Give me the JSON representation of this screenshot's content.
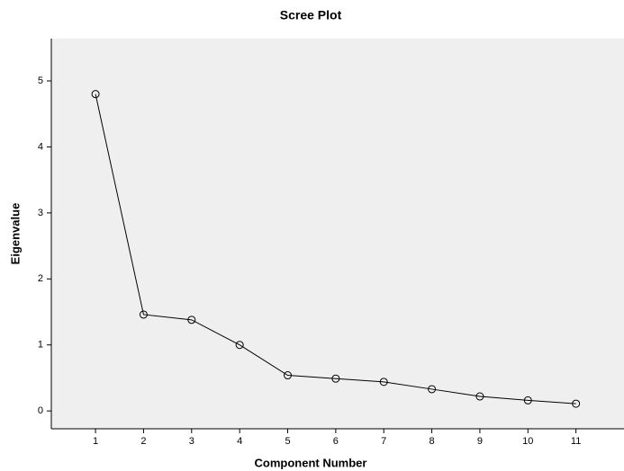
{
  "chart_data": {
    "type": "line",
    "title": "Scree Plot",
    "x_label": "Component Number",
    "y_label": "Eigenvalue",
    "x": [
      1,
      2,
      3,
      4,
      5,
      6,
      7,
      8,
      9,
      10,
      11
    ],
    "series": [
      {
        "name": "Eigenvalue",
        "color": "#000000",
        "values": [
          4.8,
          1.46,
          1.38,
          1.0,
          0.54,
          0.49,
          0.44,
          0.33,
          0.22,
          0.16,
          0.11
        ]
      }
    ],
    "xlim": [
      0.08,
      12
    ],
    "ylim": [
      -0.27,
      5.64
    ],
    "xticks": [
      1,
      2,
      3,
      4,
      5,
      6,
      7,
      8,
      9,
      10,
      11
    ],
    "yticks": [
      0,
      1,
      2,
      3,
      4,
      5
    ]
  }
}
